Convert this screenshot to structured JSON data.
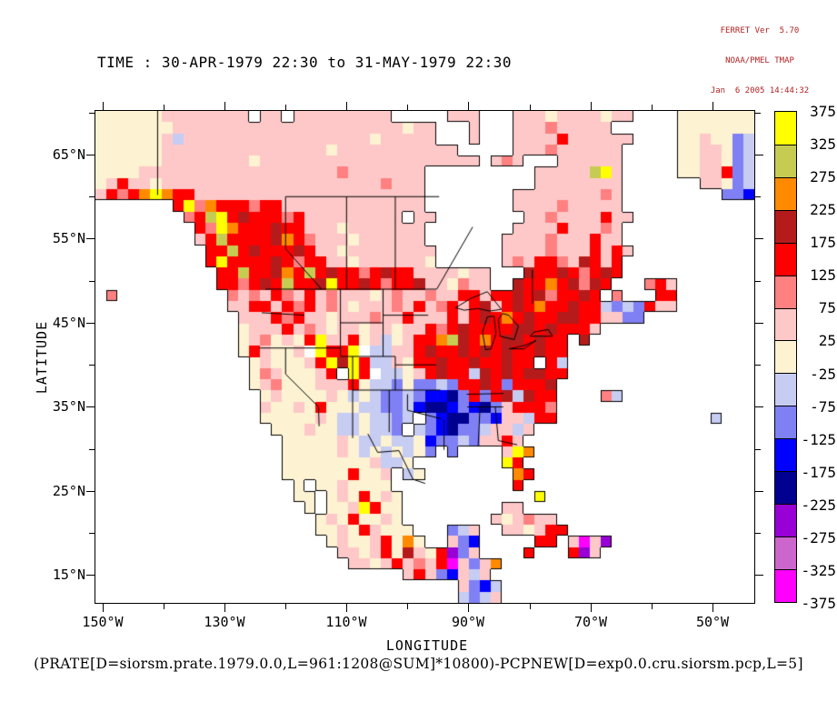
{
  "header": {
    "line1": "FERRET Ver  5.70",
    "line2": "NOAA/PMEL TMAP",
    "line3": "Jan  6 2005 14:44:32",
    "color": "#b22222"
  },
  "title": "TIME : 30-APR-1979 22:30 to 31-MAY-1979 22:30",
  "caption": "(PRATE[D=siorsm.prate.1979.0.0,L=961:1208@SUM]*10800)-PCPNEW[D=exp0.0.cru.siorsm.pcp,L=5]",
  "chart_data": {
    "type": "heatmap",
    "title": "TIME : 30-APR-1979 22:30 to 31-MAY-1979 22:30",
    "xlabel": "LONGITUDE",
    "ylabel": "LATITUDE",
    "x_tick_labels": [
      "150°W",
      "130°W",
      "110°W",
      "90°W",
      "70°W",
      "50°W"
    ],
    "y_tick_labels": [
      "65°N",
      "55°N",
      "45°N",
      "35°N",
      "25°N",
      "15°N"
    ],
    "lon_major_ticks_w": [
      150,
      130,
      110,
      90,
      70,
      50
    ],
    "lon_minor_ticks_w": [
      140,
      120,
      100,
      80,
      60
    ],
    "lat_major_ticks_n": [
      65,
      55,
      45,
      35,
      25,
      15
    ],
    "lat_minor_ticks_n": [
      70,
      60,
      50,
      40,
      30,
      20
    ],
    "lon_range_w": [
      151.2,
      43.1
    ],
    "lat_range_n": [
      70.19,
      11.7
    ],
    "grid_on": false,
    "legend_position": "right-colorbar",
    "colorbar": {
      "tick_values": [
        375,
        325,
        275,
        225,
        175,
        125,
        75,
        25,
        -25,
        -75,
        -125,
        -175,
        -225,
        -275,
        -325,
        -375
      ],
      "band_colors_top_to_bottom": [
        "#ffff00",
        "#c6cc52",
        "#ff8a00",
        "#b51b1b",
        "#ff0000",
        "#ff8080",
        "#ffc8c8",
        "#fdf2d2",
        "#c6ccf2",
        "#8080f5",
        "#0000ff",
        "#000090",
        "#9900d6",
        "#cc66cc",
        "#ff00ff"
      ]
    },
    "field": {
      "description": "monthly precipitation difference field on 60x44 cell grid, '.'=ocean/no-data(white), 'w'=white land cell",
      "ncols": 60,
      "nrows": 44,
      "palette": {
        ".": "#ffffff",
        "w": "#ffffff",
        "0": "#fdf2d2",
        "1": "#ffc8c8",
        "2": "#ff8080",
        "3": "#ff0000",
        "4": "#b51b1b",
        "5": "#ff8a00",
        "6": "#c6cc52",
        "7": "#ffff00",
        "8": "#c6ccf2",
        "9": "#8080f5",
        "a": "#0000ff",
        "b": "#000090",
        "c": "#9900d6",
        "d": "#cc66cc",
        "e": "#ff00ff"
      },
      "rows": [
        "00000011111111.11.111111111.....111...11101111011....0000000",
        "0000000111111111111111111111011...1...111211111......0000000",
        "0000001811111111111111111011111...1...11113111111....0010098",
        "000000111111111111111011111111111.....1112111111.....0011098",
        "00000011111111011111111111111111111.121...111111.....0011098",
        "000011111111111111111121111111..........11111671.....0011398",
        "013110111111111111111111112111..........11111111.......11098",
        "132357533111111111111111111111........1111111121.........99a",
        ".......37253332331111111111111........1111211111............",
        "........23673433323111111111.11........1121111311............",
        ".........327533343311101111111........1111311121............",
        ".........136333345321110111111.......11112111311............",
        "..........336343334311011111111......111121113131............",
        "..........373333432331101111110......12133214313............",
        "...........3363345363433234331111011...433432343............",
        "...........3323436334733432334110211..433534243...231.......",
        ".2..........2121321312111012112113313343423343 2...33........",
        "............11331323121011121312313413435334338989311.......",
        ".............1113231101112113111313435343344331199...........",
        ".............011131210110110113234333344343331..............",
        ".............012010371130180133564353443433 4................",
        ".............031001w7337w881134334343433433.................",
        "..............01000137473881033433433433 38..................",
        "..............02100013 73w88013433843434433..................",
        "..............0120001113088909989334393334..................",
        "...............010000108089989aab939348433....28............",
        "...............10010300088998abba9ab913332..................",
        "...............00000108808898 9abb99a11833..............8....",
        "................000100880889 89ab9981181.....................",
        ".................0000010880880a99891131.....................",
        ".................00000108080809 9....175.....................",
        ".................000000001880........73.....................",
        ".................0000003001 80........53.....................",
        "..................0.0010000...........3.....................",
        "..................00.0103010............7...................",
        "...................0.0017300.........11.....................",
        "....................01030010........101211..................",
        "....................001031000...981..110133.................",
        ".....................010013050..19a.....33.1e1c.............",
        "......................1101304103c91....3...3c1..............",
        ".......................110131213e1915.......................",
        "............................1319a181........................",
        ".................................19a8.......................",
        ".................................8981......................."
      ]
    },
    "map_overlays": {
      "borders_lonw_lat": [
        [
          [
            141,
            70.2
          ],
          [
            141,
            60.2
          ]
        ],
        [
          [
            123.3,
            49
          ],
          [
            95.2,
            49
          ]
        ],
        [
          [
            120,
            60
          ],
          [
            94.8,
            60
          ]
        ],
        [
          [
            110,
            60
          ],
          [
            110,
            49
          ]
        ],
        [
          [
            102,
            60
          ],
          [
            102,
            49
          ]
        ],
        [
          [
            120,
            60
          ],
          [
            120,
            53.8
          ],
          [
            114.1,
            49
          ]
        ],
        [
          [
            95.2,
            49
          ],
          [
            89.3,
            56.4
          ]
        ],
        [
          [
            79.5,
            51.3
          ],
          [
            79.5,
            47.3
          ]
        ],
        [
          [
            124.3,
            42
          ],
          [
            111,
            42
          ]
        ],
        [
          [
            123.9,
            46.2
          ],
          [
            116.9,
            45.9
          ]
        ],
        [
          [
            120,
            42
          ],
          [
            120,
            38.9
          ],
          [
            114.6,
            35
          ]
        ],
        [
          [
            114.6,
            35
          ],
          [
            114.5,
            32.7
          ]
        ],
        [
          [
            111,
            49
          ],
          [
            111,
            41
          ]
        ],
        [
          [
            104,
            49
          ],
          [
            104,
            41
          ]
        ],
        [
          [
            111,
            45
          ],
          [
            104,
            45
          ]
        ],
        [
          [
            104,
            45.9
          ],
          [
            96.6,
            45.9
          ]
        ],
        [
          [
            111,
            41
          ],
          [
            102,
            41
          ]
        ],
        [
          [
            102,
            41
          ],
          [
            102,
            37
          ]
        ],
        [
          [
            109,
            41
          ],
          [
            109,
            31.3
          ]
        ],
        [
          [
            109,
            37
          ],
          [
            94.6,
            37
          ]
        ],
        [
          [
            102,
            40
          ],
          [
            95.3,
            40
          ]
        ],
        [
          [
            103,
            37
          ],
          [
            103,
            32
          ]
        ],
        [
          [
            100,
            36.5
          ],
          [
            100,
            34.6
          ],
          [
            94.5,
            33.6
          ]
        ],
        [
          [
            106.5,
            31.8
          ],
          [
            104.9,
            29.6
          ],
          [
            101.4,
            29.8
          ],
          [
            99.1,
            26.4
          ],
          [
            97.1,
            25.9
          ]
        ],
        [
          [
            94,
            33.5
          ],
          [
            94,
            29.9
          ]
        ],
        [
          [
            88.1,
            35
          ],
          [
            88.4,
            30.4
          ]
        ],
        [
          [
            85.6,
            35
          ],
          [
            85.1,
            31
          ]
        ],
        [
          [
            85.1,
            31
          ],
          [
            82,
            30.5
          ]
        ],
        [
          [
            90.3,
            36.5
          ],
          [
            84.3,
            36.6
          ]
        ],
        [
          [
            90.2,
            35
          ],
          [
            84.3,
            35
          ]
        ]
      ],
      "lakes_lonw_lat": [
        [
          [
            92.1,
            46.8
          ],
          [
            89.6,
            47.9
          ],
          [
            86.9,
            48.7
          ],
          [
            84.6,
            46.6
          ],
          [
            86.5,
            46.4
          ],
          [
            88.5,
            46.7
          ],
          [
            90.7,
            46.5
          ],
          [
            92.1,
            46.8
          ]
        ],
        [
          [
            87.2,
            41.8
          ],
          [
            86.3,
            41.9
          ],
          [
            85.5,
            43.7
          ],
          [
            85.8,
            45.8
          ],
          [
            86.9,
            45.7
          ],
          [
            87.7,
            43.9
          ],
          [
            87.2,
            41.8
          ]
        ],
        [
          [
            84.8,
            43.4
          ],
          [
            82.5,
            43.0
          ],
          [
            81.8,
            44.6
          ],
          [
            83.4,
            45.9
          ],
          [
            84.4,
            46.1
          ],
          [
            85.1,
            45.4
          ],
          [
            84.8,
            43.4
          ]
        ],
        [
          [
            83.3,
            41.9
          ],
          [
            80.8,
            42.3
          ],
          [
            78.9,
            42.9
          ],
          [
            80.9,
            41.9
          ],
          [
            83.3,
            41.9
          ]
        ],
        [
          [
            79.9,
            43.4
          ],
          [
            76.2,
            43.4
          ],
          [
            76.9,
            44.2
          ],
          [
            79.2,
            43.9
          ],
          [
            79.9,
            43.4
          ]
        ]
      ]
    }
  }
}
